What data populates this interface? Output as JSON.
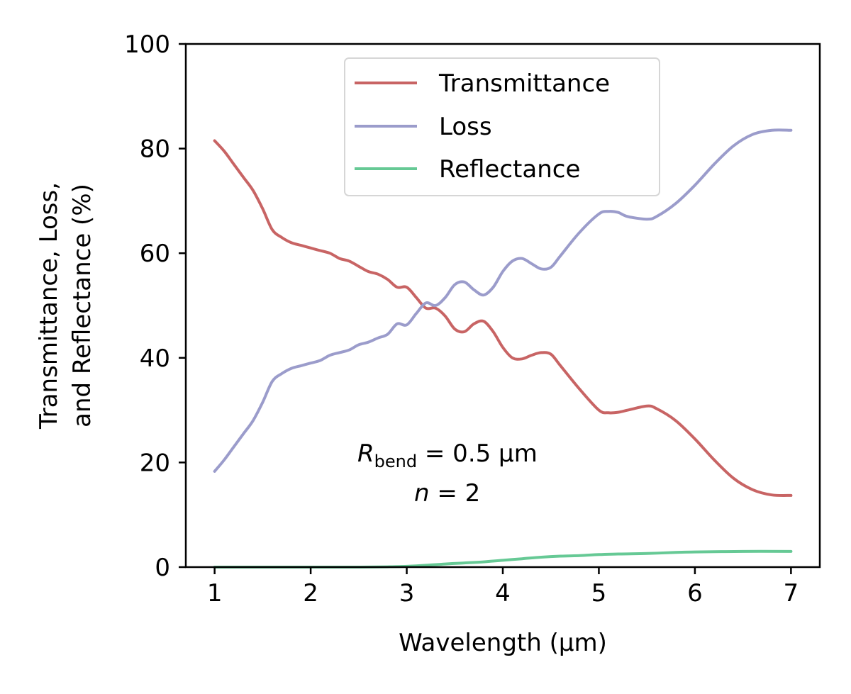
{
  "chart_data": {
    "type": "line",
    "title": "",
    "xlabel": "Wavelength (µm)",
    "ylabel_line1": "Transmittance, Loss,",
    "ylabel_line2": "and Reflectance (%)",
    "xlim": [
      0.7,
      7.3
    ],
    "ylim": [
      0,
      100
    ],
    "x_ticks": [
      1,
      2,
      3,
      4,
      5,
      6,
      7
    ],
    "y_ticks": [
      0,
      20,
      40,
      60,
      80,
      100
    ],
    "grid": false,
    "legend": {
      "placement": "top-center",
      "entries": [
        "Transmittance",
        "Loss",
        "Reflectance"
      ]
    },
    "annotations": {
      "line1_symbol": "R",
      "line1_subscript": "bend",
      "line1_rest": " = 0.5 µm",
      "line2_symbol": "n",
      "line2_rest": " = 2"
    },
    "colors": {
      "Transmittance": "#c86464",
      "Loss": "#9b9ccb",
      "Reflectance": "#66c995"
    },
    "series": [
      {
        "name": "Transmittance",
        "x": [
          1.0,
          1.1,
          1.2,
          1.3,
          1.4,
          1.5,
          1.6,
          1.7,
          1.8,
          1.9,
          2.0,
          2.1,
          2.2,
          2.3,
          2.4,
          2.5,
          2.6,
          2.7,
          2.8,
          2.9,
          3.0,
          3.1,
          3.2,
          3.3,
          3.4,
          3.5,
          3.6,
          3.7,
          3.8,
          3.9,
          4.0,
          4.1,
          4.2,
          4.3,
          4.4,
          4.5,
          4.6,
          4.8,
          5.0,
          5.1,
          5.2,
          5.3,
          5.5,
          5.6,
          5.8,
          6.0,
          6.2,
          6.4,
          6.6,
          6.8,
          7.0
        ],
        "y": [
          81.5,
          79.5,
          77.0,
          74.5,
          72.0,
          68.5,
          64.5,
          63.0,
          62.0,
          61.5,
          61.0,
          60.5,
          60.0,
          59.0,
          58.5,
          57.5,
          56.5,
          56.0,
          55.0,
          53.5,
          53.5,
          51.5,
          49.5,
          49.5,
          48.0,
          45.5,
          45.0,
          46.5,
          47.0,
          45.0,
          42.0,
          40.0,
          39.8,
          40.5,
          41.0,
          40.7,
          38.5,
          34.0,
          30.0,
          29.5,
          29.6,
          30.0,
          30.8,
          30.3,
          28.0,
          24.5,
          20.5,
          17.0,
          14.8,
          13.8,
          13.7
        ]
      },
      {
        "name": "Loss",
        "x": [
          1.0,
          1.1,
          1.2,
          1.3,
          1.4,
          1.5,
          1.6,
          1.7,
          1.8,
          1.9,
          2.0,
          2.1,
          2.2,
          2.3,
          2.4,
          2.5,
          2.6,
          2.7,
          2.8,
          2.9,
          3.0,
          3.1,
          3.2,
          3.3,
          3.4,
          3.5,
          3.6,
          3.7,
          3.8,
          3.9,
          4.0,
          4.1,
          4.2,
          4.3,
          4.4,
          4.5,
          4.6,
          4.8,
          5.0,
          5.1,
          5.2,
          5.3,
          5.5,
          5.6,
          5.8,
          6.0,
          6.2,
          6.4,
          6.6,
          6.8,
          7.0
        ],
        "y": [
          18.3,
          20.5,
          23.0,
          25.5,
          28.0,
          31.5,
          35.5,
          37.0,
          38.0,
          38.5,
          39.0,
          39.5,
          40.5,
          41.0,
          41.5,
          42.5,
          43.0,
          43.8,
          44.5,
          46.5,
          46.3,
          48.5,
          50.5,
          50.0,
          51.5,
          54.0,
          54.5,
          53.0,
          52.0,
          53.5,
          56.5,
          58.5,
          59.0,
          58.0,
          57.0,
          57.3,
          59.5,
          64.0,
          67.5,
          68.0,
          67.8,
          67.0,
          66.5,
          67.0,
          69.5,
          73.0,
          77.0,
          80.5,
          82.7,
          83.5,
          83.5
        ]
      },
      {
        "name": "Reflectance",
        "x": [
          1.0,
          1.5,
          2.0,
          2.5,
          2.8,
          3.0,
          3.2,
          3.4,
          3.6,
          3.8,
          4.0,
          4.2,
          4.4,
          4.6,
          4.8,
          5.0,
          5.2,
          5.5,
          5.8,
          6.0,
          6.5,
          7.0
        ],
        "y": [
          0.0,
          0.0,
          0.0,
          0.0,
          0.05,
          0.15,
          0.35,
          0.6,
          0.8,
          1.0,
          1.3,
          1.6,
          1.9,
          2.1,
          2.2,
          2.4,
          2.5,
          2.6,
          2.8,
          2.9,
          3.0,
          3.0
        ]
      }
    ]
  }
}
